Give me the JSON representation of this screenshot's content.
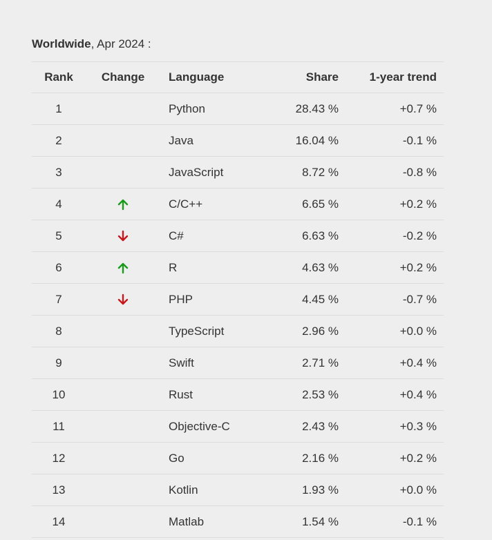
{
  "caption": {
    "region": "Worldwide",
    "rest": ", Apr 2024 :"
  },
  "table": {
    "headers": {
      "rank": "Rank",
      "change": "Change",
      "language": "Language",
      "share": "Share",
      "trend": "1-year trend"
    },
    "rows": [
      {
        "rank": "1",
        "change": "",
        "language": "Python",
        "share": "28.43 %",
        "trend": "+0.7 %"
      },
      {
        "rank": "2",
        "change": "",
        "language": "Java",
        "share": "16.04 %",
        "trend": "-0.1 %"
      },
      {
        "rank": "3",
        "change": "",
        "language": "JavaScript",
        "share": "8.72 %",
        "trend": "-0.8 %"
      },
      {
        "rank": "4",
        "change": "up",
        "language": "C/C++",
        "share": "6.65 %",
        "trend": "+0.2 %"
      },
      {
        "rank": "5",
        "change": "down",
        "language": "C#",
        "share": "6.63 %",
        "trend": "-0.2 %"
      },
      {
        "rank": "6",
        "change": "up",
        "language": "R",
        "share": "4.63 %",
        "trend": "+0.2 %"
      },
      {
        "rank": "7",
        "change": "down",
        "language": "PHP",
        "share": "4.45 %",
        "trend": "-0.7 %"
      },
      {
        "rank": "8",
        "change": "",
        "language": "TypeScript",
        "share": "2.96 %",
        "trend": "+0.0 %"
      },
      {
        "rank": "9",
        "change": "",
        "language": "Swift",
        "share": "2.71 %",
        "trend": "+0.4 %"
      },
      {
        "rank": "10",
        "change": "",
        "language": "Rust",
        "share": "2.53 %",
        "trend": "+0.4 %"
      },
      {
        "rank": "11",
        "change": "",
        "language": "Objective-C",
        "share": "2.43 %",
        "trend": "+0.3 %"
      },
      {
        "rank": "12",
        "change": "",
        "language": "Go",
        "share": "2.16 %",
        "trend": "+0.2 %"
      },
      {
        "rank": "13",
        "change": "",
        "language": "Kotlin",
        "share": "1.93 %",
        "trend": "+0.0 %"
      },
      {
        "rank": "14",
        "change": "",
        "language": "Matlab",
        "share": "1.54 %",
        "trend": "-0.1 %"
      }
    ]
  },
  "icons": {
    "up": "arrow-up-icon",
    "down": "arrow-down-icon"
  },
  "colors": {
    "up": "#1a9a1a",
    "down": "#c8161d",
    "background": "#eeeeee",
    "text": "#333333",
    "divider": "#dcdcdc"
  }
}
